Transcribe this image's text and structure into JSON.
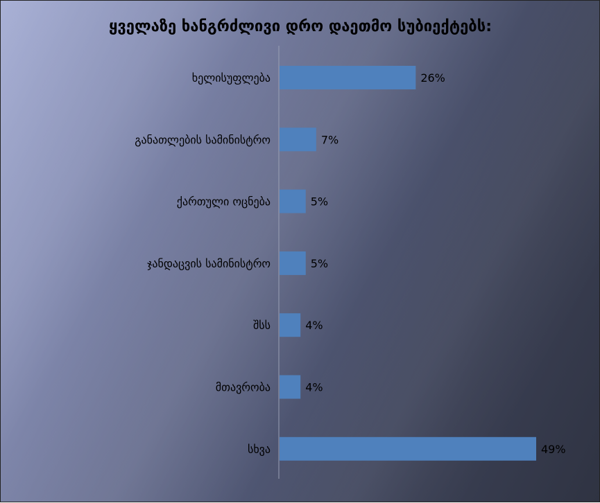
{
  "chart_data": {
    "type": "bar",
    "orientation": "horizontal",
    "title": "ყველაზე ხანგრძლივი დრო დაეთმო სუბიექტებს:",
    "categories": [
      "ხელისუფლება",
      "განათლების სამინისტრო",
      "ქართული ოცნება",
      "ჯანდაცვის სამინისტრო",
      "შსს",
      "მთავრობა",
      "სხვა"
    ],
    "values": [
      26,
      7,
      5,
      5,
      4,
      4,
      49
    ],
    "data_labels": [
      "26%",
      "7%",
      "5%",
      "5%",
      "4%",
      "4%",
      "49%"
    ],
    "unit": "%",
    "xlim": [
      0,
      55
    ],
    "grid": false,
    "legend": "none",
    "bar_color": "#4f81bd",
    "axis_color": "#9aa0b4"
  }
}
